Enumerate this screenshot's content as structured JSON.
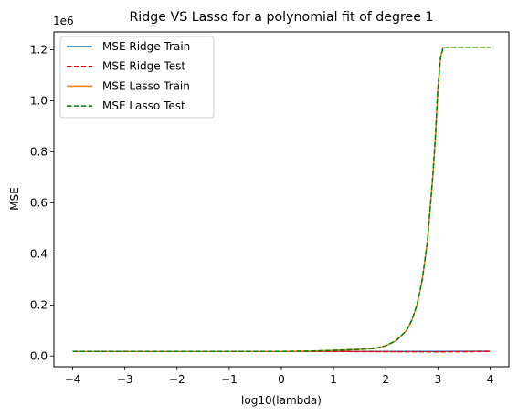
{
  "chart_data": {
    "type": "line",
    "title": "Ridge VS Lasso for a polynomial fit of degree 1",
    "xlabel": "log10(lambda)",
    "ylabel": "MSE",
    "y_offset_label": "1e6",
    "xlim": [
      -4.36,
      4.36
    ],
    "ylim": [
      -0.042,
      1.27
    ],
    "xticks": [
      -4,
      -3,
      -2,
      -1,
      0,
      1,
      2,
      3,
      4
    ],
    "xtick_labels": [
      "−4",
      "−3",
      "−2",
      "−1",
      "0",
      "1",
      "2",
      "3",
      "4"
    ],
    "yticks": [
      0.0,
      0.2,
      0.4,
      0.6,
      0.8,
      1.0,
      1.2
    ],
    "ytick_labels": [
      "0.0",
      "0.2",
      "0.4",
      "0.6",
      "0.8",
      "1.0",
      "1.2"
    ],
    "grid": false,
    "legend_position": "top-left",
    "series": [
      {
        "name": "MSE Ridge Train",
        "color": "#1f77b4",
        "dash": "solid",
        "x": [
          -4,
          -3,
          -2,
          -1,
          0,
          1,
          2,
          3,
          4
        ],
        "y": [
          0.018,
          0.018,
          0.018,
          0.018,
          0.018,
          0.018,
          0.018,
          0.018,
          0.019
        ]
      },
      {
        "name": "MSE Ridge Test",
        "color": "#ff0000",
        "dash": "dashed",
        "x": [
          -4,
          -3,
          -2,
          -1,
          0,
          1,
          2,
          3,
          4
        ],
        "y": [
          0.018,
          0.018,
          0.018,
          0.018,
          0.018,
          0.018,
          0.017,
          0.016,
          0.018
        ]
      },
      {
        "name": "MSE Lasso Train",
        "color": "#ff7f0e",
        "dash": "solid",
        "x": [
          -4,
          -3,
          -2,
          -1,
          0,
          0.5,
          1.0,
          1.5,
          1.8,
          2.0,
          2.2,
          2.4,
          2.5,
          2.6,
          2.7,
          2.8,
          2.9,
          2.95,
          3.0,
          3.05,
          3.1,
          3.2,
          3.5,
          4.0
        ],
        "y": [
          0.018,
          0.018,
          0.018,
          0.018,
          0.018,
          0.019,
          0.022,
          0.026,
          0.03,
          0.04,
          0.06,
          0.1,
          0.14,
          0.2,
          0.3,
          0.45,
          0.7,
          0.85,
          1.05,
          1.17,
          1.21,
          1.21,
          1.21,
          1.21
        ]
      },
      {
        "name": "MSE Lasso Test",
        "color": "#008000",
        "dash": "dashed",
        "x": [
          -4,
          -3,
          -2,
          -1,
          0,
          0.5,
          1.0,
          1.5,
          1.8,
          2.0,
          2.2,
          2.4,
          2.5,
          2.6,
          2.7,
          2.8,
          2.9,
          2.95,
          3.0,
          3.05,
          3.1,
          3.2,
          3.5,
          4.0
        ],
        "y": [
          0.018,
          0.018,
          0.018,
          0.018,
          0.018,
          0.019,
          0.022,
          0.026,
          0.03,
          0.04,
          0.06,
          0.1,
          0.14,
          0.2,
          0.3,
          0.45,
          0.7,
          0.85,
          1.05,
          1.17,
          1.21,
          1.21,
          1.21,
          1.21
        ]
      }
    ]
  }
}
